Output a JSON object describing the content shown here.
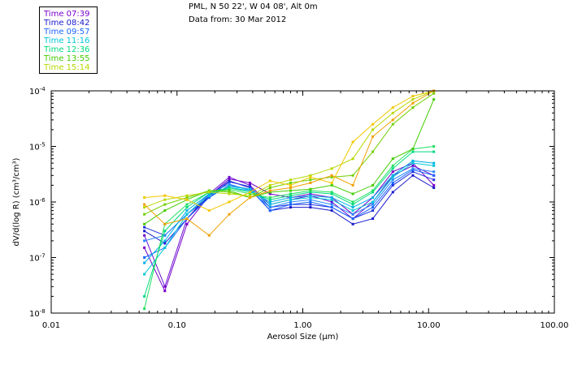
{
  "header": {
    "site": "PML, N 50 22', W 04 08', Alt 0m",
    "date": "Data from: 30 Mar 2012"
  },
  "legend": [
    {
      "label": "Time 07:39",
      "color": "#7a00cc"
    },
    {
      "label": "Time 08:42",
      "color": "#1a1acc"
    },
    {
      "label": "Time 09:57",
      "color": "#1a66ff"
    },
    {
      "label": "Time 11:16",
      "color": "#00c8d8"
    },
    {
      "label": "Time 12:36",
      "color": "#00d880"
    },
    {
      "label": "Time 13:55",
      "color": "#44cc00"
    },
    {
      "label": "Time 15:14",
      "color": "#b8d800"
    }
  ],
  "chart_data": {
    "type": "line",
    "xscale": "log",
    "yscale": "log",
    "xlim": [
      0.01,
      100
    ],
    "ylim": [
      1e-08,
      0.0001
    ],
    "xlabel": "Aerosol Size (μm)",
    "ylabel": "dV/d(log R) (cm³/cm³)",
    "x_tick_labels": [
      "0.01",
      "0.10",
      "1.00",
      "10.00",
      "100.00"
    ],
    "x_tick_values": [
      0.01,
      0.1,
      1,
      10,
      100
    ],
    "y_tick_labels": [
      {
        "mant": "10",
        "exp": "-8",
        "value": 1e-08
      },
      {
        "mant": "10",
        "exp": "-7",
        "value": 1e-07
      },
      {
        "mant": "10",
        "exp": "-6",
        "value": 1e-06
      },
      {
        "mant": "10",
        "exp": "-5",
        "value": 1e-05
      },
      {
        "mant": "10",
        "exp": "-4",
        "value": 0.0001
      }
    ],
    "x": [
      0.055,
      0.08,
      0.12,
      0.18,
      0.26,
      0.38,
      0.55,
      0.8,
      1.15,
      1.7,
      2.5,
      3.6,
      5.2,
      7.5,
      11
    ],
    "series": [
      {
        "name": "Time 07:39",
        "color": "#7a00cc",
        "values": [
          1.5e-07,
          2.5e-08,
          4e-07,
          1.3e-06,
          2.6e-06,
          2.2e-06,
          1.4e-06,
          1.2e-06,
          1.4e-06,
          1.2e-06,
          6e-07,
          1.2e-06,
          3.5e-06,
          5e-06,
          2e-06
        ]
      },
      {
        "name": "Time 07:39",
        "color": "#6a10d0",
        "values": [
          2.5e-07,
          3e-08,
          5e-07,
          1.4e-06,
          2.8e-06,
          2e-06,
          9e-07,
          1.1e-06,
          1.3e-06,
          1e-06,
          5e-07,
          1e-06,
          3e-06,
          4.5e-06,
          3e-06
        ]
      },
      {
        "name": "Time 08:42",
        "color": "#1a1acc",
        "values": [
          3e-07,
          1.8e-07,
          5e-07,
          1.3e-06,
          2.4e-06,
          1.8e-06,
          7e-07,
          8e-07,
          8e-07,
          7e-07,
          4e-07,
          5e-07,
          1.5e-06,
          3e-06,
          1.8e-06
        ]
      },
      {
        "name": "Time 08:42",
        "color": "#2030e0",
        "values": [
          3.5e-07,
          2.5e-07,
          6e-07,
          1.2e-06,
          2.3e-06,
          1.9e-06,
          8e-07,
          9e-07,
          9e-07,
          8e-07,
          5e-07,
          7e-07,
          2e-06,
          3.5e-06,
          2.5e-06
        ]
      },
      {
        "name": "Time 09:57",
        "color": "#1a66ff",
        "values": [
          1e-07,
          1.5e-07,
          5e-07,
          1.2e-06,
          2e-06,
          1.7e-06,
          7e-07,
          9e-07,
          1e-06,
          8e-07,
          5e-07,
          8e-07,
          2.2e-06,
          3.8e-06,
          3e-06
        ]
      },
      {
        "name": "Time 09:57",
        "color": "#2a88ff",
        "values": [
          2e-07,
          2.5e-07,
          6e-07,
          1.4e-06,
          2.1e-06,
          1.6e-06,
          8e-07,
          1e-06,
          1.1e-06,
          9e-07,
          6e-07,
          9e-07,
          2.5e-06,
          4e-06,
          3.5e-06
        ]
      },
      {
        "name": "Time 11:16",
        "color": "#00c8d8",
        "values": [
          5e-08,
          1.5e-07,
          6e-07,
          1.3e-06,
          1.9e-06,
          1.7e-06,
          9e-07,
          1.1e-06,
          1.2e-06,
          1.1e-06,
          7e-07,
          1e-06,
          2.8e-06,
          5e-06,
          4.5e-06
        ]
      },
      {
        "name": "Time 11:16",
        "color": "#00b0e8",
        "values": [
          8e-08,
          2e-07,
          7e-07,
          1.4e-06,
          1.8e-06,
          1.6e-06,
          1e-06,
          1.2e-06,
          1.3e-06,
          1.2e-06,
          8e-07,
          1.2e-06,
          3e-06,
          5.5e-06,
          5e-06
        ]
      },
      {
        "name": "Time 12:36",
        "color": "#00d880",
        "values": [
          2e-08,
          3e-07,
          8e-07,
          1.5e-06,
          1.8e-06,
          1.5e-06,
          1.1e-06,
          1.3e-06,
          1.5e-06,
          1.4e-06,
          9e-07,
          1.5e-06,
          4e-06,
          8e-06,
          8e-06
        ]
      },
      {
        "name": "Time 12:36",
        "color": "#20e060",
        "values": [
          1.2e-08,
          4e-07,
          9e-07,
          1.5e-06,
          1.7e-06,
          1.4e-06,
          1.2e-06,
          1.4e-06,
          1.6e-06,
          1.5e-06,
          1e-06,
          1.6e-06,
          4.5e-06,
          9e-06,
          1e-05
        ]
      },
      {
        "name": "Time 13:55",
        "color": "#44cc00",
        "values": [
          4e-07,
          7e-07,
          1.1e-06,
          1.6e-06,
          1.6e-06,
          1.2e-06,
          1.5e-06,
          1.6e-06,
          1.7e-06,
          2e-06,
          1.4e-06,
          2e-06,
          6e-06,
          9e-06,
          7e-05
        ]
      },
      {
        "name": "Time 13:55",
        "color": "#70d000",
        "values": [
          6e-07,
          9e-07,
          1.2e-06,
          1.6e-06,
          1.5e-06,
          1.2e-06,
          1.8e-06,
          2.2e-06,
          2.5e-06,
          2.8e-06,
          3e-06,
          8e-06,
          2.5e-05,
          5e-05,
          9e-05
        ]
      },
      {
        "name": "Time 15:14",
        "color": "#b8d800",
        "values": [
          8e-07,
          1.1e-06,
          1.3e-06,
          1.5e-06,
          1.4e-06,
          1.3e-06,
          2e-06,
          2.5e-06,
          3e-06,
          4e-06,
          6e-06,
          2e-05,
          4e-05,
          7e-05,
          0.0001
        ]
      },
      {
        "name": "Time 15:14",
        "color": "#f0c800",
        "values": [
          1.2e-06,
          1.3e-06,
          1.1e-06,
          7e-07,
          1e-06,
          1.5e-06,
          2.4e-06,
          2e-06,
          2.8e-06,
          2.2e-06,
          1.2e-05,
          2.5e-05,
          5e-05,
          8e-05,
          0.0001
        ]
      },
      {
        "name": "Time 15:14",
        "color": "#f0a000",
        "values": [
          9e-07,
          4e-07,
          5e-07,
          2.5e-07,
          6e-07,
          1.2e-06,
          1.6e-06,
          1.8e-06,
          2.2e-06,
          3e-06,
          2e-06,
          1.5e-05,
          3e-05,
          6e-05,
          0.0001
        ]
      }
    ]
  }
}
